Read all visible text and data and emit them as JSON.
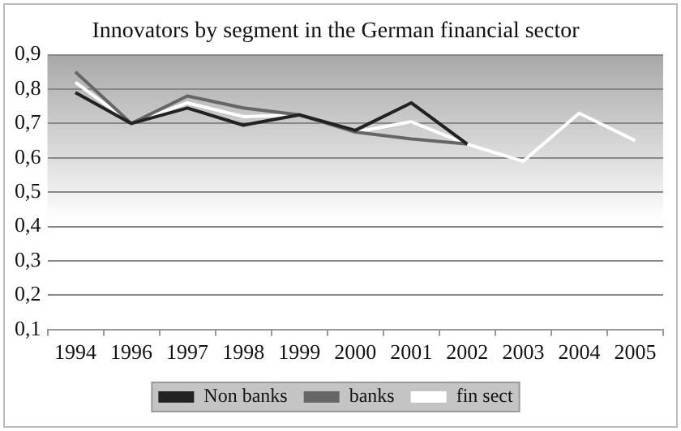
{
  "chart_data": {
    "type": "line",
    "title": "Innovators by segment in the German financial sector",
    "categories": [
      "1994",
      "1996",
      "1997",
      "1998",
      "1999",
      "2000",
      "2001",
      "2002",
      "2003",
      "2004",
      "2005"
    ],
    "series": [
      {
        "name": "Non banks",
        "color": "#222222",
        "values": [
          0.79,
          0.7,
          0.745,
          0.695,
          0.725,
          0.68,
          0.76,
          0.64,
          null,
          null,
          null
        ]
      },
      {
        "name": "banks",
        "color": "#666666",
        "values": [
          0.85,
          0.7,
          0.78,
          0.745,
          0.725,
          0.675,
          0.655,
          0.64,
          null,
          null,
          null
        ]
      },
      {
        "name": "fin sect",
        "color": "#ffffff",
        "values": [
          0.82,
          0.7,
          0.76,
          0.72,
          0.725,
          0.675,
          0.705,
          0.64,
          0.59,
          0.73,
          0.65
        ]
      }
    ],
    "ylim": [
      0.1,
      0.9
    ],
    "yticks": [
      {
        "value": 0.1,
        "label": "0,1"
      },
      {
        "value": 0.2,
        "label": "0,2"
      },
      {
        "value": 0.3,
        "label": "0,3"
      },
      {
        "value": 0.4,
        "label": "0,4"
      },
      {
        "value": 0.5,
        "label": "0,5"
      },
      {
        "value": 0.6,
        "label": "0,6"
      },
      {
        "value": 0.7,
        "label": "0,7"
      },
      {
        "value": 0.8,
        "label": "0,8"
      },
      {
        "value": 0.9,
        "label": "0,9"
      }
    ],
    "grid": "y",
    "legend": "bottom",
    "marker": "none",
    "line_style": "solid"
  }
}
